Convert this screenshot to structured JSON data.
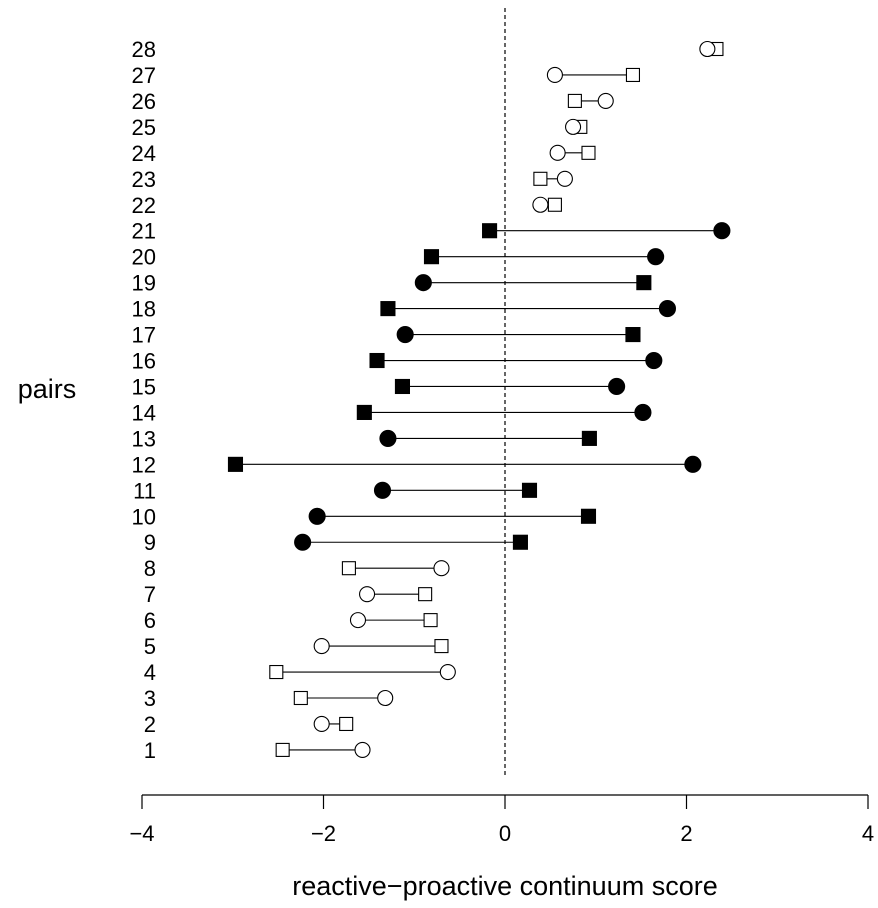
{
  "chart_data": {
    "type": "dot-pair",
    "title": "",
    "xlabel": "reactive−proactive continuum score",
    "ylabel": "pairs",
    "xlim": [
      -4,
      4
    ],
    "x_ticks": [
      -4,
      -2,
      0,
      2,
      4
    ],
    "x_tick_labels": [
      "−4",
      "−2",
      "0",
      "2",
      "4"
    ],
    "reference_line": {
      "x": 0,
      "style": "dashed"
    },
    "grid": false,
    "pairs": [
      {
        "label": "1",
        "square": -2.45,
        "circle": -1.57,
        "filled": false
      },
      {
        "label": "2",
        "square": -1.75,
        "circle": -2.02,
        "filled": false
      },
      {
        "label": "3",
        "square": -2.25,
        "circle": -1.32,
        "filled": false
      },
      {
        "label": "4",
        "square": -2.52,
        "circle": -0.63,
        "filled": false
      },
      {
        "label": "5",
        "square": -0.7,
        "circle": -2.02,
        "filled": false
      },
      {
        "label": "6",
        "square": -0.82,
        "circle": -1.62,
        "filled": false
      },
      {
        "label": "7",
        "square": -0.88,
        "circle": -1.52,
        "filled": false
      },
      {
        "label": "8",
        "square": -1.72,
        "circle": -0.7,
        "filled": false
      },
      {
        "label": "9",
        "square": 0.17,
        "circle": -2.23,
        "filled": true
      },
      {
        "label": "10",
        "square": 0.92,
        "circle": -2.07,
        "filled": true
      },
      {
        "label": "11",
        "square": 0.27,
        "circle": -1.35,
        "filled": true
      },
      {
        "label": "12",
        "square": -2.97,
        "circle": 2.07,
        "filled": true
      },
      {
        "label": "13",
        "square": 0.93,
        "circle": -1.29,
        "filled": true
      },
      {
        "label": "14",
        "square": -1.55,
        "circle": 1.52,
        "filled": true
      },
      {
        "label": "15",
        "square": -1.13,
        "circle": 1.23,
        "filled": true
      },
      {
        "label": "16",
        "square": -1.41,
        "circle": 1.64,
        "filled": true
      },
      {
        "label": "17",
        "square": 1.41,
        "circle": -1.1,
        "filled": true
      },
      {
        "label": "18",
        "square": -1.29,
        "circle": 1.79,
        "filled": true
      },
      {
        "label": "19",
        "square": 1.53,
        "circle": -0.9,
        "filled": true
      },
      {
        "label": "20",
        "square": -0.81,
        "circle": 1.66,
        "filled": true
      },
      {
        "label": "21",
        "square": -0.17,
        "circle": 2.39,
        "filled": true
      },
      {
        "label": "22",
        "square": 0.55,
        "circle": 0.39,
        "filled": false
      },
      {
        "label": "23",
        "square": 0.39,
        "circle": 0.66,
        "filled": false
      },
      {
        "label": "24",
        "square": 0.92,
        "circle": 0.58,
        "filled": false
      },
      {
        "label": "25",
        "square": 0.83,
        "circle": 0.75,
        "filled": false
      },
      {
        "label": "26",
        "square": 0.77,
        "circle": 1.11,
        "filled": false
      },
      {
        "label": "27",
        "square": 1.41,
        "circle": 0.55,
        "filled": false
      },
      {
        "label": "28",
        "square": 2.33,
        "circle": 2.23,
        "filled": false
      }
    ]
  }
}
